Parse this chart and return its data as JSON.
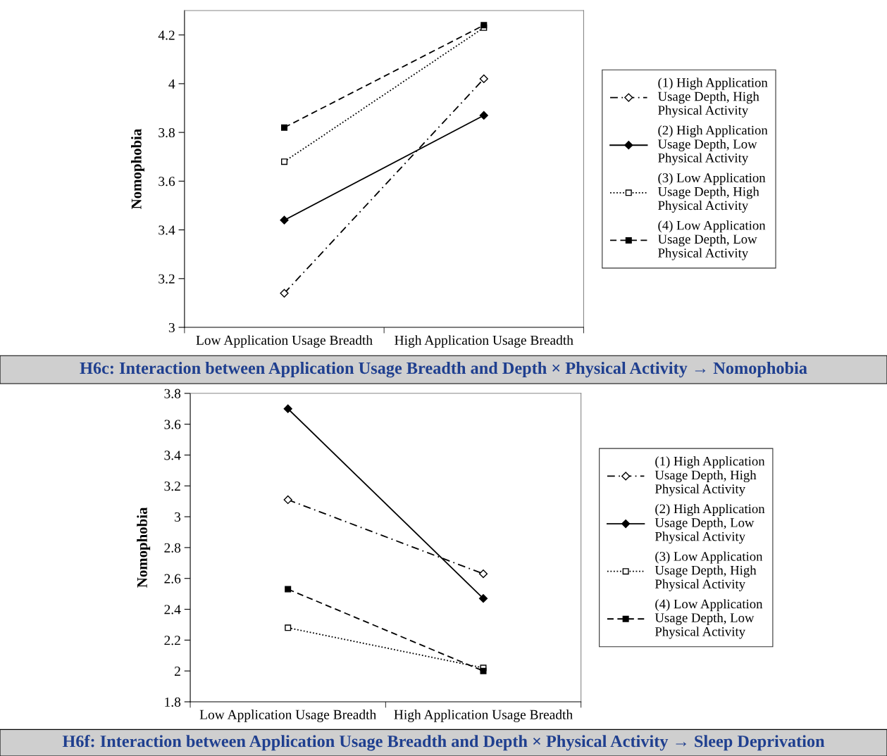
{
  "chart_data": [
    {
      "type": "line",
      "title": "H6c: Interaction between Application Usage Breadth and Depth × Physical Activity → Nomophobia",
      "ylabel": "Nomophobia",
      "categories": [
        "Low Application Usage Breadth",
        "High Application Usage Breadth"
      ],
      "ylim": [
        3,
        4.3
      ],
      "yticks": [
        3,
        3.2,
        3.4,
        3.6,
        3.8,
        4,
        4.2
      ],
      "grid": false,
      "legend": "right",
      "series": [
        {
          "name": "(1) High Application\nUsage Depth, High\nPhysical Activity",
          "color": "#000000",
          "values": [
            3.14,
            4.02
          ],
          "marker": "diamond_open",
          "line_style": "dashdot"
        },
        {
          "name": "(2) High Application\nUsage Depth, Low\nPhysical Activity",
          "color": "#000000",
          "values": [
            3.44,
            3.87
          ],
          "marker": "diamond",
          "line_style": "solid"
        },
        {
          "name": "(3) Low Application\nUsage Depth, High\nPhysical Activity",
          "color": "#000000",
          "values": [
            3.68,
            4.23
          ],
          "marker": "square_open",
          "line_style": "dotted"
        },
        {
          "name": "(4) Low Application\nUsage Depth, Low\nPhysical Activity",
          "color": "#000000",
          "values": [
            3.82,
            4.24
          ],
          "marker": "square",
          "line_style": "dashed"
        }
      ]
    },
    {
      "type": "line",
      "title": "H6f: Interaction between Application Usage Breadth and Depth × Physical Activity → Sleep Deprivation",
      "ylabel": "Nomophobia",
      "categories": [
        "Low Application Usage Breadth",
        "High Application Usage Breadth"
      ],
      "ylim": [
        1.8,
        3.8
      ],
      "yticks": [
        1.8,
        2,
        2.2,
        2.4,
        2.6,
        2.8,
        3,
        3.2,
        3.4,
        3.6,
        3.8
      ],
      "grid": false,
      "legend": "right",
      "series": [
        {
          "name": "(1) High Application\nUsage Depth, High\nPhysical Activity",
          "color": "#000000",
          "values": [
            3.11,
            2.63
          ],
          "marker": "diamond_open",
          "line_style": "dashdot"
        },
        {
          "name": "(2) High Application\nUsage Depth, Low\nPhysical Activity",
          "color": "#000000",
          "values": [
            3.7,
            2.47
          ],
          "marker": "diamond",
          "line_style": "solid"
        },
        {
          "name": "(3) Low Application\nUsage Depth, High\nPhysical Activity",
          "color": "#000000",
          "values": [
            2.28,
            2.02
          ],
          "marker": "square_open",
          "line_style": "dotted"
        },
        {
          "name": "(4) Low Application\nUsage Depth, Low\nPhysical Activity",
          "color": "#000000",
          "values": [
            2.53,
            2.0
          ],
          "marker": "square",
          "line_style": "dashed"
        }
      ]
    }
  ]
}
